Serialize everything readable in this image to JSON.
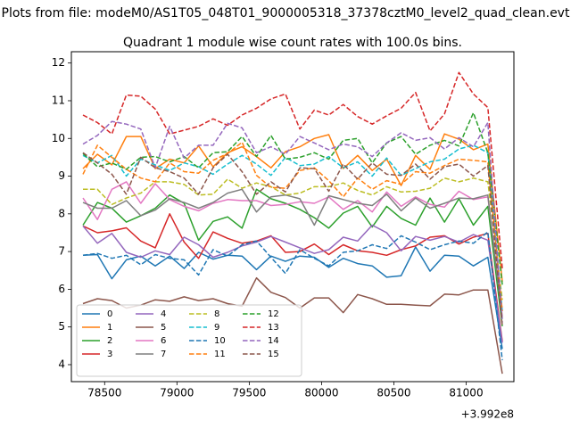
{
  "figure": {
    "suptitle": "Plots from file: modeM0/AS1T05_048T01_9000005318_37378cztM0_level2_quad_clean.evt",
    "title": "Quadrant 1 module wise count rates with 100.0s bins."
  },
  "chart_data": {
    "type": "line",
    "title": "Quadrant 1 module wise count rates with 100.0s bins.",
    "xlabel": "",
    "ylabel": "",
    "x_offset_label": "+3.992e8",
    "xlim": [
      78270,
      81330
    ],
    "ylim": [
      3.55,
      12.3
    ],
    "xticks": [
      78500,
      79000,
      79500,
      80000,
      80500,
      81000
    ],
    "xtick_labels": [
      "78500",
      "79000",
      "79500",
      "80000",
      "80500",
      "81000"
    ],
    "yticks": [
      4,
      5,
      6,
      7,
      8,
      9,
      10,
      11,
      12
    ],
    "ytick_labels": [
      "4",
      "5",
      "6",
      "7",
      "8",
      "9",
      "10",
      "11",
      "12"
    ],
    "grid": false,
    "legend": {
      "location": "lower-left",
      "columns": 4
    },
    "x": [
      78350,
      78450,
      78550,
      78650,
      78750,
      78850,
      78950,
      79050,
      79150,
      79250,
      79350,
      79450,
      79550,
      79650,
      79750,
      79850,
      79950,
      80050,
      80150,
      80250,
      80350,
      80450,
      80550,
      80650,
      80750,
      80850,
      80950,
      81050,
      81150,
      81250
    ],
    "series": [
      {
        "name": "0",
        "color": "#1f77b4",
        "dash": "solid",
        "values": [
          6.9,
          6.92,
          6.28,
          6.78,
          6.88,
          6.62,
          6.88,
          6.55,
          6.98,
          6.8,
          6.9,
          6.88,
          6.52,
          6.88,
          6.74,
          6.88,
          6.85,
          6.58,
          6.82,
          6.68,
          6.62,
          6.32,
          6.36,
          7.12,
          6.48,
          6.9,
          6.88,
          6.62,
          6.85,
          4.42
        ]
      },
      {
        "name": "1",
        "color": "#ff7f0e",
        "dash": "solid",
        "values": [
          9.2,
          9.58,
          9.3,
          10.05,
          10.05,
          9.2,
          9.45,
          9.35,
          9.8,
          9.25,
          9.62,
          9.78,
          9.52,
          9.22,
          9.65,
          9.78,
          10.0,
          10.1,
          9.2,
          9.55,
          9.15,
          9.45,
          8.75,
          9.55,
          9.18,
          10.12,
          9.98,
          9.7,
          9.85,
          6.2
        ]
      },
      {
        "name": "2",
        "color": "#2ca02c",
        "dash": "solid",
        "values": [
          7.7,
          8.3,
          8.15,
          7.78,
          7.95,
          8.15,
          8.5,
          8.28,
          7.3,
          7.8,
          7.92,
          7.62,
          8.65,
          8.4,
          8.28,
          8.12,
          7.9,
          7.62,
          8.02,
          8.2,
          7.65,
          8.2,
          7.88,
          7.7,
          8.42,
          7.78,
          8.4,
          7.7,
          8.2,
          5.02
        ]
      },
      {
        "name": "3",
        "color": "#d62728",
        "dash": "solid",
        "values": [
          7.68,
          7.5,
          7.55,
          7.63,
          7.28,
          7.1,
          8.0,
          7.25,
          6.82,
          7.52,
          7.35,
          7.22,
          7.28,
          7.42,
          6.98,
          7.0,
          7.2,
          6.92,
          7.18,
          7.02,
          6.98,
          6.9,
          7.05,
          7.15,
          7.38,
          7.42,
          7.2,
          7.38,
          7.48,
          4.62
        ]
      },
      {
        "name": "4",
        "color": "#9467bd",
        "dash": "solid",
        "values": [
          7.68,
          7.22,
          7.48,
          6.98,
          6.85,
          7.02,
          6.92,
          7.38,
          7.18,
          6.85,
          6.98,
          7.15,
          7.25,
          7.4,
          7.25,
          7.1,
          6.95,
          7.05,
          7.38,
          7.28,
          7.7,
          7.5,
          7.02,
          7.4,
          7.3,
          7.4,
          7.25,
          7.45,
          7.3,
          4.58
        ]
      },
      {
        "name": "5",
        "color": "#8c564b",
        "dash": "solid",
        "values": [
          5.62,
          5.75,
          5.7,
          5.5,
          5.58,
          5.72,
          5.68,
          5.8,
          5.7,
          5.75,
          5.62,
          5.55,
          6.3,
          5.92,
          5.78,
          5.5,
          5.77,
          5.77,
          5.38,
          5.86,
          5.75,
          5.6,
          5.6,
          5.58,
          5.56,
          5.87,
          5.85,
          5.98,
          5.98,
          3.76
        ]
      },
      {
        "name": "6",
        "color": "#e377c2",
        "dash": "solid",
        "values": [
          8.42,
          7.85,
          8.65,
          8.85,
          8.28,
          8.8,
          8.38,
          8.2,
          8.08,
          8.28,
          8.38,
          8.35,
          8.35,
          8.22,
          8.25,
          8.32,
          8.28,
          8.45,
          8.12,
          8.35,
          8.05,
          8.58,
          8.2,
          8.45,
          8.25,
          8.18,
          8.6,
          8.38,
          8.45,
          5.28
        ]
      },
      {
        "name": "7",
        "color": "#7f7f7f",
        "dash": "solid",
        "values": [
          8.3,
          8.15,
          8.15,
          8.35,
          7.95,
          8.1,
          8.4,
          8.3,
          8.15,
          8.3,
          8.55,
          8.65,
          8.05,
          8.45,
          8.5,
          8.4,
          7.7,
          8.48,
          8.38,
          8.28,
          8.22,
          8.52,
          8.08,
          8.42,
          8.15,
          8.28,
          8.42,
          8.4,
          8.5,
          5.22
        ]
      },
      {
        "name": "8",
        "color": "#bcbd22",
        "dash": "dashed",
        "values": [
          8.65,
          8.65,
          8.25,
          8.42,
          8.55,
          8.85,
          8.85,
          8.78,
          8.5,
          8.52,
          8.92,
          8.68,
          8.82,
          8.72,
          8.5,
          8.55,
          8.72,
          8.72,
          8.82,
          8.62,
          8.5,
          8.72,
          8.58,
          8.6,
          8.68,
          8.95,
          8.85,
          8.95,
          8.85,
          5.72
        ]
      },
      {
        "name": "9",
        "color": "#17becf",
        "dash": "dashed",
        "values": [
          9.55,
          9.35,
          9.55,
          9.0,
          9.45,
          9.3,
          9.15,
          9.35,
          9.25,
          9.05,
          9.32,
          9.55,
          9.32,
          9.02,
          9.5,
          9.28,
          9.32,
          9.52,
          9.22,
          9.38,
          9.0,
          9.48,
          9.02,
          9.2,
          9.38,
          9.45,
          9.72,
          9.82,
          9.62,
          5.42
        ]
      },
      {
        "name": "10",
        "color": "#1f77b4",
        "dash": "dashed",
        "values": [
          6.9,
          6.95,
          6.82,
          6.9,
          6.65,
          6.92,
          6.82,
          6.78,
          6.38,
          7.05,
          6.88,
          7.18,
          7.28,
          6.85,
          6.42,
          7.05,
          6.82,
          6.62,
          6.98,
          7.02,
          7.18,
          7.08,
          7.42,
          7.25,
          7.05,
          7.18,
          7.28,
          7.22,
          7.52,
          4.12
        ]
      },
      {
        "name": "11",
        "color": "#ff7f0e",
        "dash": "dashed",
        "values": [
          9.05,
          9.82,
          9.5,
          9.18,
          8.95,
          8.85,
          9.35,
          9.12,
          9.08,
          9.42,
          9.6,
          9.9,
          9.02,
          8.7,
          8.68,
          9.15,
          9.22,
          8.88,
          8.45,
          8.95,
          8.65,
          8.88,
          8.78,
          9.12,
          9.08,
          9.28,
          9.45,
          9.42,
          9.38,
          5.42
        ]
      },
      {
        "name": "12",
        "color": "#2ca02c",
        "dash": "dashed",
        "values": [
          9.6,
          9.25,
          9.35,
          9.18,
          9.5,
          9.52,
          9.38,
          9.52,
          9.22,
          9.62,
          9.65,
          10.05,
          9.52,
          10.08,
          9.45,
          9.5,
          9.62,
          9.45,
          9.95,
          10.0,
          9.35,
          9.88,
          10.05,
          9.58,
          9.82,
          9.95,
          9.8,
          10.68,
          9.62,
          6.12
        ]
      },
      {
        "name": "13",
        "color": "#d62728",
        "dash": "dashed",
        "values": [
          10.62,
          10.42,
          10.12,
          11.15,
          11.12,
          10.78,
          10.12,
          10.22,
          10.32,
          10.52,
          10.35,
          10.62,
          10.8,
          11.05,
          11.18,
          10.25,
          10.75,
          10.62,
          10.9,
          10.58,
          10.38,
          10.6,
          10.8,
          11.22,
          10.2,
          10.65,
          11.75,
          11.18,
          10.82,
          6.55
        ]
      },
      {
        "name": "14",
        "color": "#9467bd",
        "dash": "dashed",
        "values": [
          9.85,
          10.08,
          10.45,
          10.38,
          10.25,
          9.22,
          10.32,
          9.48,
          9.82,
          9.82,
          10.4,
          10.28,
          9.62,
          9.78,
          9.58,
          10.05,
          9.88,
          9.7,
          9.85,
          9.78,
          9.52,
          9.88,
          10.15,
          9.95,
          10.02,
          9.72,
          10.02,
          9.78,
          10.42,
          5.12
        ]
      },
      {
        "name": "15",
        "color": "#8c564b",
        "dash": "dashed",
        "values": [
          9.62,
          9.35,
          9.05,
          8.52,
          9.5,
          9.22,
          9.12,
          8.95,
          8.52,
          9.22,
          9.58,
          9.12,
          8.52,
          8.85,
          8.58,
          9.22,
          9.2,
          8.6,
          9.32,
          8.92,
          9.35,
          9.05,
          9.02,
          9.32,
          8.92,
          9.25,
          9.32,
          9.0,
          9.28,
          5.02
        ]
      }
    ]
  }
}
